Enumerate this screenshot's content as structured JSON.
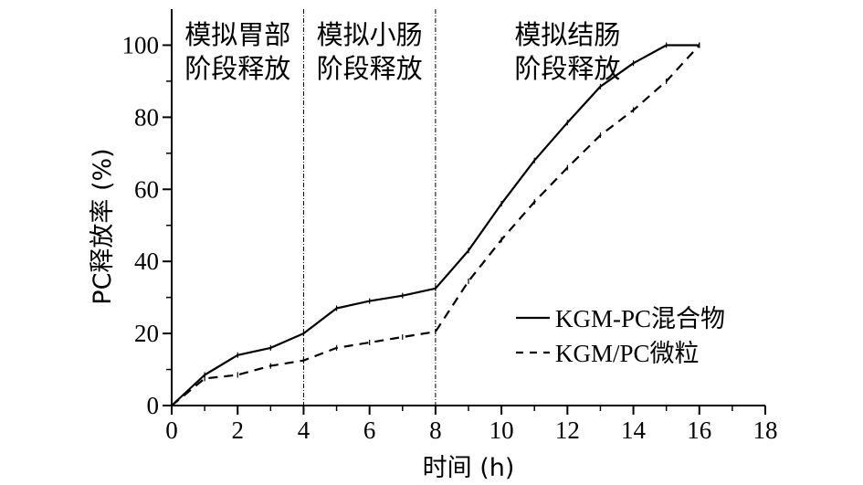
{
  "chart_data": {
    "type": "line",
    "xlabel": "时间 (h)",
    "ylabel": "PC释放率 (%)",
    "xlim": [
      0,
      18
    ],
    "ylim": [
      0,
      110
    ],
    "x_ticks": [
      0,
      2,
      4,
      6,
      8,
      10,
      12,
      14,
      16,
      18
    ],
    "y_ticks": [
      0,
      20,
      40,
      60,
      80,
      100
    ],
    "grid": false,
    "legend_position": "right",
    "phase_dividers": [
      4,
      8
    ],
    "phase_labels": [
      {
        "line1": "模拟胃部",
        "line2": "阶段释放"
      },
      {
        "line1": "模拟小肠",
        "line2": "阶段释放"
      },
      {
        "line1": "模拟结肠",
        "line2": "阶段释放"
      }
    ],
    "series": [
      {
        "name": "KGM-PC混合物",
        "style": "solid",
        "color": "#000000",
        "x": [
          0,
          1,
          2,
          3,
          4,
          5,
          6,
          7,
          8,
          9,
          10,
          11,
          12,
          13,
          14,
          15,
          16
        ],
        "y": [
          0,
          8.5,
          14,
          16,
          20,
          27,
          29,
          30.5,
          32.5,
          43,
          56,
          68,
          78.5,
          88.5,
          95,
          100,
          100
        ]
      },
      {
        "name": "KGM/PC微粒",
        "style": "dashed",
        "color": "#000000",
        "x": [
          0,
          1,
          2,
          3,
          4,
          5,
          6,
          7,
          8,
          9,
          10,
          11,
          12,
          13,
          14,
          15,
          16
        ],
        "y": [
          0,
          7.5,
          8.5,
          11,
          12.5,
          16,
          17.5,
          19,
          20.5,
          34.5,
          46,
          56.5,
          66,
          75,
          82,
          90,
          100
        ]
      }
    ]
  }
}
